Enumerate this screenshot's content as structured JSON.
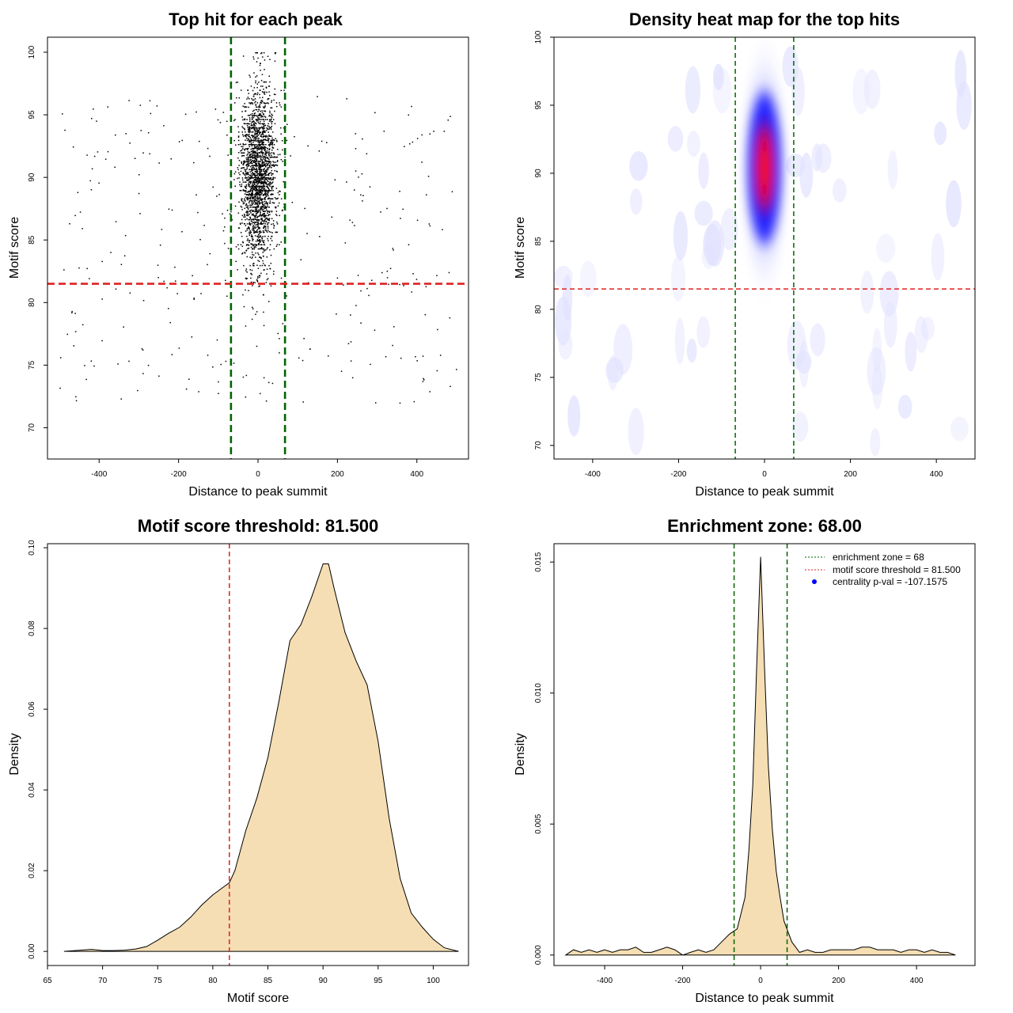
{
  "chart_data": [
    {
      "id": "scatter",
      "type": "scatter",
      "title": "Top hit for each peak",
      "xlabel": "Distance to peak summit",
      "ylabel": "Motif score",
      "xlim": [
        -530,
        530
      ],
      "ylim": [
        67.5,
        101.2
      ],
      "xticks": [
        -400,
        -200,
        0,
        200,
        400
      ],
      "yticks": [
        70,
        75,
        80,
        85,
        90,
        95,
        100
      ],
      "hlines": [
        {
          "y": 81.5,
          "color": "#e02020",
          "style": "dashed"
        }
      ],
      "vlines": [
        {
          "x": -68,
          "color": "#006400",
          "style": "dashed"
        },
        {
          "x": 68,
          "color": "#006400",
          "style": "dashed"
        }
      ],
      "points_summary": {
        "n_points": 2600,
        "central_mean_x": 0,
        "central_sd_x": 22,
        "central_mean_score": 90.3,
        "central_sd_score": 3.6,
        "background_x_range": [
          -500,
          500
        ],
        "background_score_range": [
          72,
          96.5
        ]
      }
    },
    {
      "id": "heatmap",
      "type": "heatmap",
      "title": "Density heat map for the top hits",
      "xlabel": "Distance to peak summit",
      "ylabel": "Motif score",
      "xlim": [
        -490,
        490
      ],
      "ylim": [
        69,
        100
      ],
      "xticks": [
        -400,
        -200,
        0,
        200,
        400
      ],
      "yticks": [
        70,
        75,
        80,
        85,
        90,
        95,
        100
      ],
      "hlines": [
        {
          "y": 81.5,
          "color": "#e02020",
          "style": "dashed"
        }
      ],
      "vlines": [
        {
          "x": -68,
          "color": "#006400",
          "style": "dashed"
        },
        {
          "x": 68,
          "color": "#006400",
          "style": "dashed"
        }
      ],
      "colors": [
        "#ffffff",
        "#0000ff",
        "#ff0000"
      ],
      "peak": {
        "x": 0,
        "y": 90.5
      }
    },
    {
      "id": "score-density",
      "type": "area",
      "title": "Motif score threshold: 81.500",
      "xlabel": "Motif score",
      "ylabel": "Density",
      "xlim": [
        65,
        103.2
      ],
      "ylim": [
        -0.0035,
        0.101
      ],
      "xticks": [
        65,
        70,
        75,
        80,
        85,
        90,
        95,
        100
      ],
      "yticks": [
        0.0,
        0.02,
        0.04,
        0.06,
        0.08,
        0.1
      ],
      "ytick_labels": [
        "0.00",
        "0.02",
        "0.04",
        "0.06",
        "0.08",
        "0.10"
      ],
      "fill": "#f5deb3",
      "vlines": [
        {
          "x": 81.5,
          "color": "#e02020",
          "style": "dashed"
        }
      ],
      "x": [
        66.5,
        68,
        69,
        70,
        71,
        72,
        73,
        74,
        75,
        76,
        77,
        78,
        79,
        80,
        81,
        81.5,
        82,
        83,
        84,
        85,
        86,
        87,
        88,
        89,
        90,
        90.5,
        91,
        92,
        93,
        94,
        95,
        96,
        97,
        98,
        99,
        100,
        101,
        102.3
      ],
      "y": [
        0.0,
        0.0003,
        0.0005,
        0.0002,
        0.0002,
        0.0003,
        0.0006,
        0.0012,
        0.0028,
        0.0045,
        0.006,
        0.0085,
        0.0115,
        0.014,
        0.016,
        0.017,
        0.02,
        0.03,
        0.038,
        0.048,
        0.062,
        0.077,
        0.081,
        0.088,
        0.096,
        0.096,
        0.09,
        0.079,
        0.072,
        0.066,
        0.052,
        0.033,
        0.018,
        0.0095,
        0.006,
        0.003,
        0.0009,
        0.0
      ]
    },
    {
      "id": "distance-density",
      "type": "area",
      "title": "Enrichment zone: 68.00",
      "xlabel": "Distance to peak summit",
      "ylabel": "Density",
      "xlim": [
        -530,
        550
      ],
      "ylim": [
        -0.0004,
        0.0157
      ],
      "xticks": [
        -400,
        -200,
        0,
        200,
        400
      ],
      "yticks": [
        0.0,
        0.005,
        0.01,
        0.015
      ],
      "ytick_labels": [
        "0.000",
        "0.005",
        "0.010",
        "0.015"
      ],
      "fill": "#f5deb3",
      "vlines": [
        {
          "x": -68,
          "color": "#006400",
          "style": "dashed"
        },
        {
          "x": 68,
          "color": "#006400",
          "style": "dashed"
        }
      ],
      "x": [
        -500,
        -480,
        -460,
        -440,
        -420,
        -400,
        -380,
        -360,
        -340,
        -320,
        -300,
        -280,
        -260,
        -240,
        -220,
        -200,
        -180,
        -160,
        -140,
        -120,
        -100,
        -80,
        -60,
        -40,
        -30,
        -20,
        -10,
        0,
        10,
        20,
        30,
        40,
        50,
        60,
        80,
        100,
        120,
        140,
        160,
        180,
        200,
        220,
        240,
        260,
        280,
        300,
        320,
        340,
        360,
        380,
        400,
        420,
        440,
        460,
        480,
        500
      ],
      "y": [
        0.0,
        0.0002,
        0.0001,
        0.0002,
        0.0001,
        0.0002,
        0.0001,
        0.0002,
        0.0002,
        0.0003,
        0.0001,
        0.0001,
        0.0002,
        0.0003,
        0.0002,
        0.0,
        0.0001,
        0.0002,
        0.0001,
        0.0002,
        0.0005,
        0.0008,
        0.001,
        0.0022,
        0.004,
        0.0065,
        0.011,
        0.0152,
        0.011,
        0.0072,
        0.0048,
        0.0032,
        0.0022,
        0.0013,
        0.0005,
        0.0001,
        0.0002,
        0.0001,
        0.0001,
        0.0002,
        0.0002,
        0.0002,
        0.0002,
        0.0003,
        0.0003,
        0.0002,
        0.0002,
        0.0002,
        0.0001,
        0.0002,
        0.0002,
        0.0001,
        0.0002,
        0.0001,
        0.0001,
        0.0
      ],
      "legend": [
        {
          "label": "enrichment zone = 68",
          "kind": "line",
          "color": "#006400"
        },
        {
          "label": "motif score threshold = 81.500",
          "kind": "line",
          "color": "#e02020"
        },
        {
          "label": "centrality p-val = -107.1575",
          "kind": "point",
          "color": "#0000ff"
        }
      ]
    }
  ]
}
